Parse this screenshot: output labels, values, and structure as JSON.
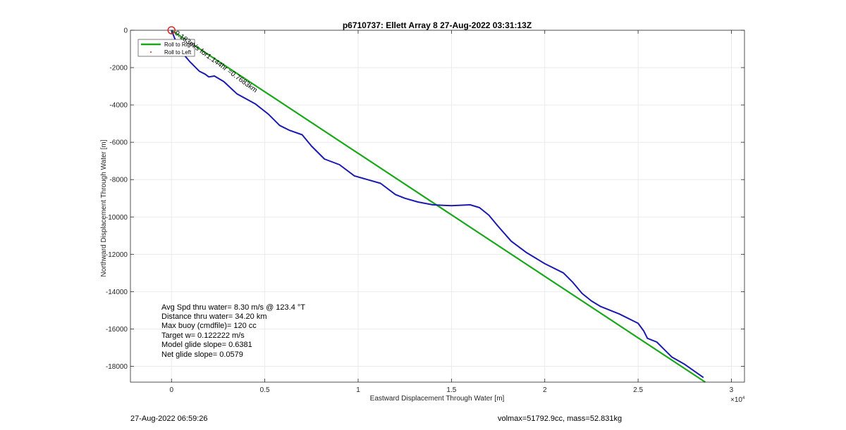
{
  "chart_data": {
    "type": "line",
    "title": "p6710737: Ellett Array 8 27-Aug-2022 03:31:13Z",
    "xlabel": "Eastward Displacement Through Water [m]",
    "ylabel": "Northward Displacement Through Water [m]",
    "x_exponent_label": "×10",
    "x_exponent_power": "4",
    "xlim": [
      -2200,
      30700
    ],
    "ylim": [
      -18850,
      0
    ],
    "x_ticks": [
      0,
      5000,
      10000,
      15000,
      20000,
      25000,
      30000
    ],
    "x_tick_labels": [
      "0",
      "0.5",
      "1",
      "1.5",
      "2",
      "2.5",
      "3"
    ],
    "y_ticks": [
      0,
      -2000,
      -4000,
      -6000,
      -8000,
      -10000,
      -12000,
      -14000,
      -16000,
      -18000
    ],
    "y_tick_labels": [
      "0",
      "-2000",
      "-4000",
      "-6000",
      "-8000",
      "-10000",
      "-12000",
      "-14000",
      "-16000",
      "-18000"
    ],
    "grid": true,
    "legend_position": "top-left",
    "series": [
      {
        "name": "Roll to Right",
        "color": "#1aa81a",
        "x": [
          0,
          28600
        ],
        "y": [
          0,
          -18850
        ]
      },
      {
        "name": "Roll to Left",
        "color": "#d62728",
        "x": [],
        "y": []
      },
      {
        "color": "#1a1ab0",
        "x": [
          0,
          400,
          1000,
          1500,
          1800,
          2000,
          2300,
          2800,
          3500,
          4500,
          5200,
          5800,
          6300,
          7000,
          7500,
          8200,
          9000,
          9800,
          10500,
          11200,
          12000,
          12500,
          13200,
          14000,
          15000,
          16000,
          16500,
          17000,
          17500,
          18200,
          19000,
          20000,
          21000,
          21500,
          22000,
          22500,
          23000,
          24000,
          25000,
          25300,
          25500,
          26000,
          26300,
          26800,
          27500,
          28500
        ],
        "y": [
          0,
          -1000,
          -1700,
          -2200,
          -2350,
          -2500,
          -2450,
          -2750,
          -3400,
          -3950,
          -4500,
          -5100,
          -5350,
          -5600,
          -6200,
          -6900,
          -7200,
          -7800,
          -8000,
          -8200,
          -8800,
          -9000,
          -9200,
          -9350,
          -9400,
          -9350,
          -9500,
          -9900,
          -10500,
          -11300,
          -11900,
          -12500,
          -13000,
          -13500,
          -14100,
          -14500,
          -14800,
          -15200,
          -15700,
          -16100,
          -16500,
          -16700,
          -17000,
          -17500,
          -17900,
          -18600
        ]
      }
    ],
    "start_marker": {
      "x": 0,
      "y": 0,
      "color": "#d62728"
    },
    "annotation": {
      "text": "0.183m/s for1.144hr =0.7683km",
      "x": 150,
      "y": -200
    },
    "stats": [
      "Avg Spd thru water=  8.30 m/s @ 123.4 °T",
      "Distance thru water= 34.20 km",
      "Max buoy (cmdfile)= 120 cc",
      "Target w= 0.122222 m/s",
      "Model glide slope= 0.6381",
      "Net glide slope= 0.0579"
    ]
  },
  "footer": {
    "left": "27-Aug-2022 06:59:26",
    "right": "volmax=51792.9cc, mass=52.831kg"
  }
}
